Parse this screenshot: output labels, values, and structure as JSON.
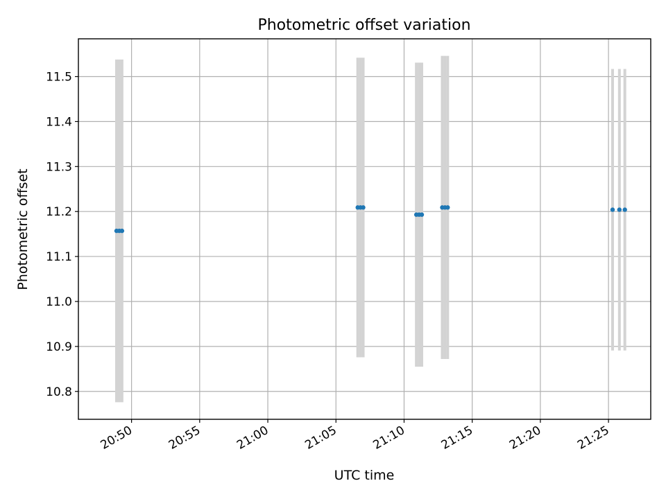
{
  "chart_data": {
    "type": "scatter",
    "title": "Photometric offset variation",
    "xlabel": "UTC time",
    "ylabel": "Photometric offset",
    "x_axis": {
      "kind": "time",
      "range": [
        "20:46:06",
        "21:28:06"
      ],
      "ticks": [
        "20:50",
        "20:55",
        "21:00",
        "21:05",
        "21:10",
        "21:15",
        "21:20",
        "21:25"
      ],
      "tick_label_rotation": -30
    },
    "y_axis": {
      "range": [
        10.738,
        11.584
      ],
      "ticks": [
        10.8,
        10.9,
        11.0,
        11.1,
        11.2,
        11.3,
        11.4,
        11.5
      ],
      "tick_labels": [
        "10.8",
        "10.9",
        "11.0",
        "11.1",
        "11.2",
        "11.3",
        "11.4",
        "11.5"
      ]
    },
    "grid": true,
    "error_bar_color": "#d3d3d3",
    "point_color": "#1f77b4",
    "groups": [
      {
        "points": [
          {
            "x": "20:48:54",
            "y": 11.157,
            "yerr": 0.381
          },
          {
            "x": "20:49:06",
            "y": 11.157,
            "yerr": 0.381
          },
          {
            "x": "20:49:18",
            "y": 11.157,
            "yerr": 0.381
          }
        ]
      },
      {
        "points": [
          {
            "x": "21:06:36",
            "y": 11.209,
            "yerr": 0.333
          },
          {
            "x": "21:06:48",
            "y": 11.209,
            "yerr": 0.333
          },
          {
            "x": "21:07:00",
            "y": 11.209,
            "yerr": 0.333
          }
        ]
      },
      {
        "points": [
          {
            "x": "21:10:54",
            "y": 11.193,
            "yerr": 0.338
          },
          {
            "x": "21:11:06",
            "y": 11.193,
            "yerr": 0.338
          },
          {
            "x": "21:11:18",
            "y": 11.193,
            "yerr": 0.338
          }
        ]
      },
      {
        "points": [
          {
            "x": "21:12:48",
            "y": 11.209,
            "yerr": 0.337
          },
          {
            "x": "21:13:00",
            "y": 11.209,
            "yerr": 0.337
          },
          {
            "x": "21:13:12",
            "y": 11.209,
            "yerr": 0.337
          }
        ]
      },
      {
        "points": [
          {
            "x": "21:25:18",
            "y": 11.204,
            "yerr": 0.313
          },
          {
            "x": "21:25:48",
            "y": 11.204,
            "yerr": 0.313
          },
          {
            "x": "21:26:12",
            "y": 11.204,
            "yerr": 0.313
          }
        ]
      }
    ]
  }
}
